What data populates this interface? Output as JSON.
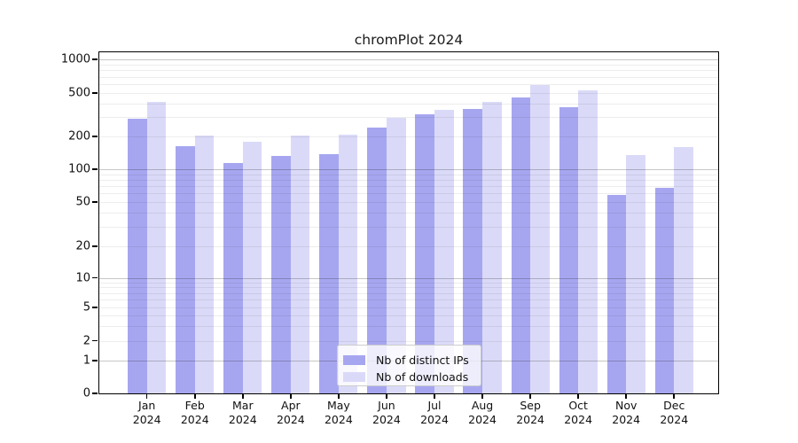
{
  "title": "chromPlot 2024",
  "chart_data": {
    "type": "bar",
    "title": "chromPlot 2024",
    "x_categories": [
      "Jan",
      "Feb",
      "Mar",
      "Apr",
      "May",
      "Jun",
      "Jul",
      "Aug",
      "Sep",
      "Oct",
      "Nov",
      "Dec"
    ],
    "x_year_label": "2024",
    "series": [
      {
        "name": "Nb of distinct IPs",
        "key": "distinct-ips",
        "color": "#a6a6f0",
        "values": [
          290,
          164,
          115,
          132,
          138,
          242,
          317,
          358,
          457,
          372,
          58,
          67
        ]
      },
      {
        "name": "Nb of downloads",
        "key": "downloads",
        "color": "#dadaf8",
        "values": [
          415,
          205,
          177,
          205,
          207,
          293,
          348,
          416,
          587,
          531,
          134,
          161
        ]
      }
    ],
    "y_axis": {
      "scale": "symlog",
      "tick_labels": [
        0,
        1,
        2,
        5,
        10,
        20,
        50,
        100,
        200,
        500,
        1000
      ],
      "range": [
        0,
        1000
      ],
      "major_gridline_values": [
        1,
        10,
        100,
        1000
      ],
      "minor_gridline_values": [
        2,
        3,
        4,
        5,
        6,
        7,
        8,
        9,
        20,
        30,
        40,
        50,
        60,
        70,
        80,
        90,
        200,
        300,
        400,
        500,
        600,
        700,
        800,
        900
      ]
    },
    "grid": "horizontal, log major+minor",
    "legend_position": "lower center"
  },
  "colors": {
    "bar_distinct_ips": "#a6a6f0",
    "bar_downloads": "#dadaf8",
    "grid_major": "#c6c6c6",
    "grid_minor": "#ededed",
    "spine": "#000000",
    "text": "#111111",
    "legend_border": "#cccccc",
    "background": "#ffffff"
  }
}
